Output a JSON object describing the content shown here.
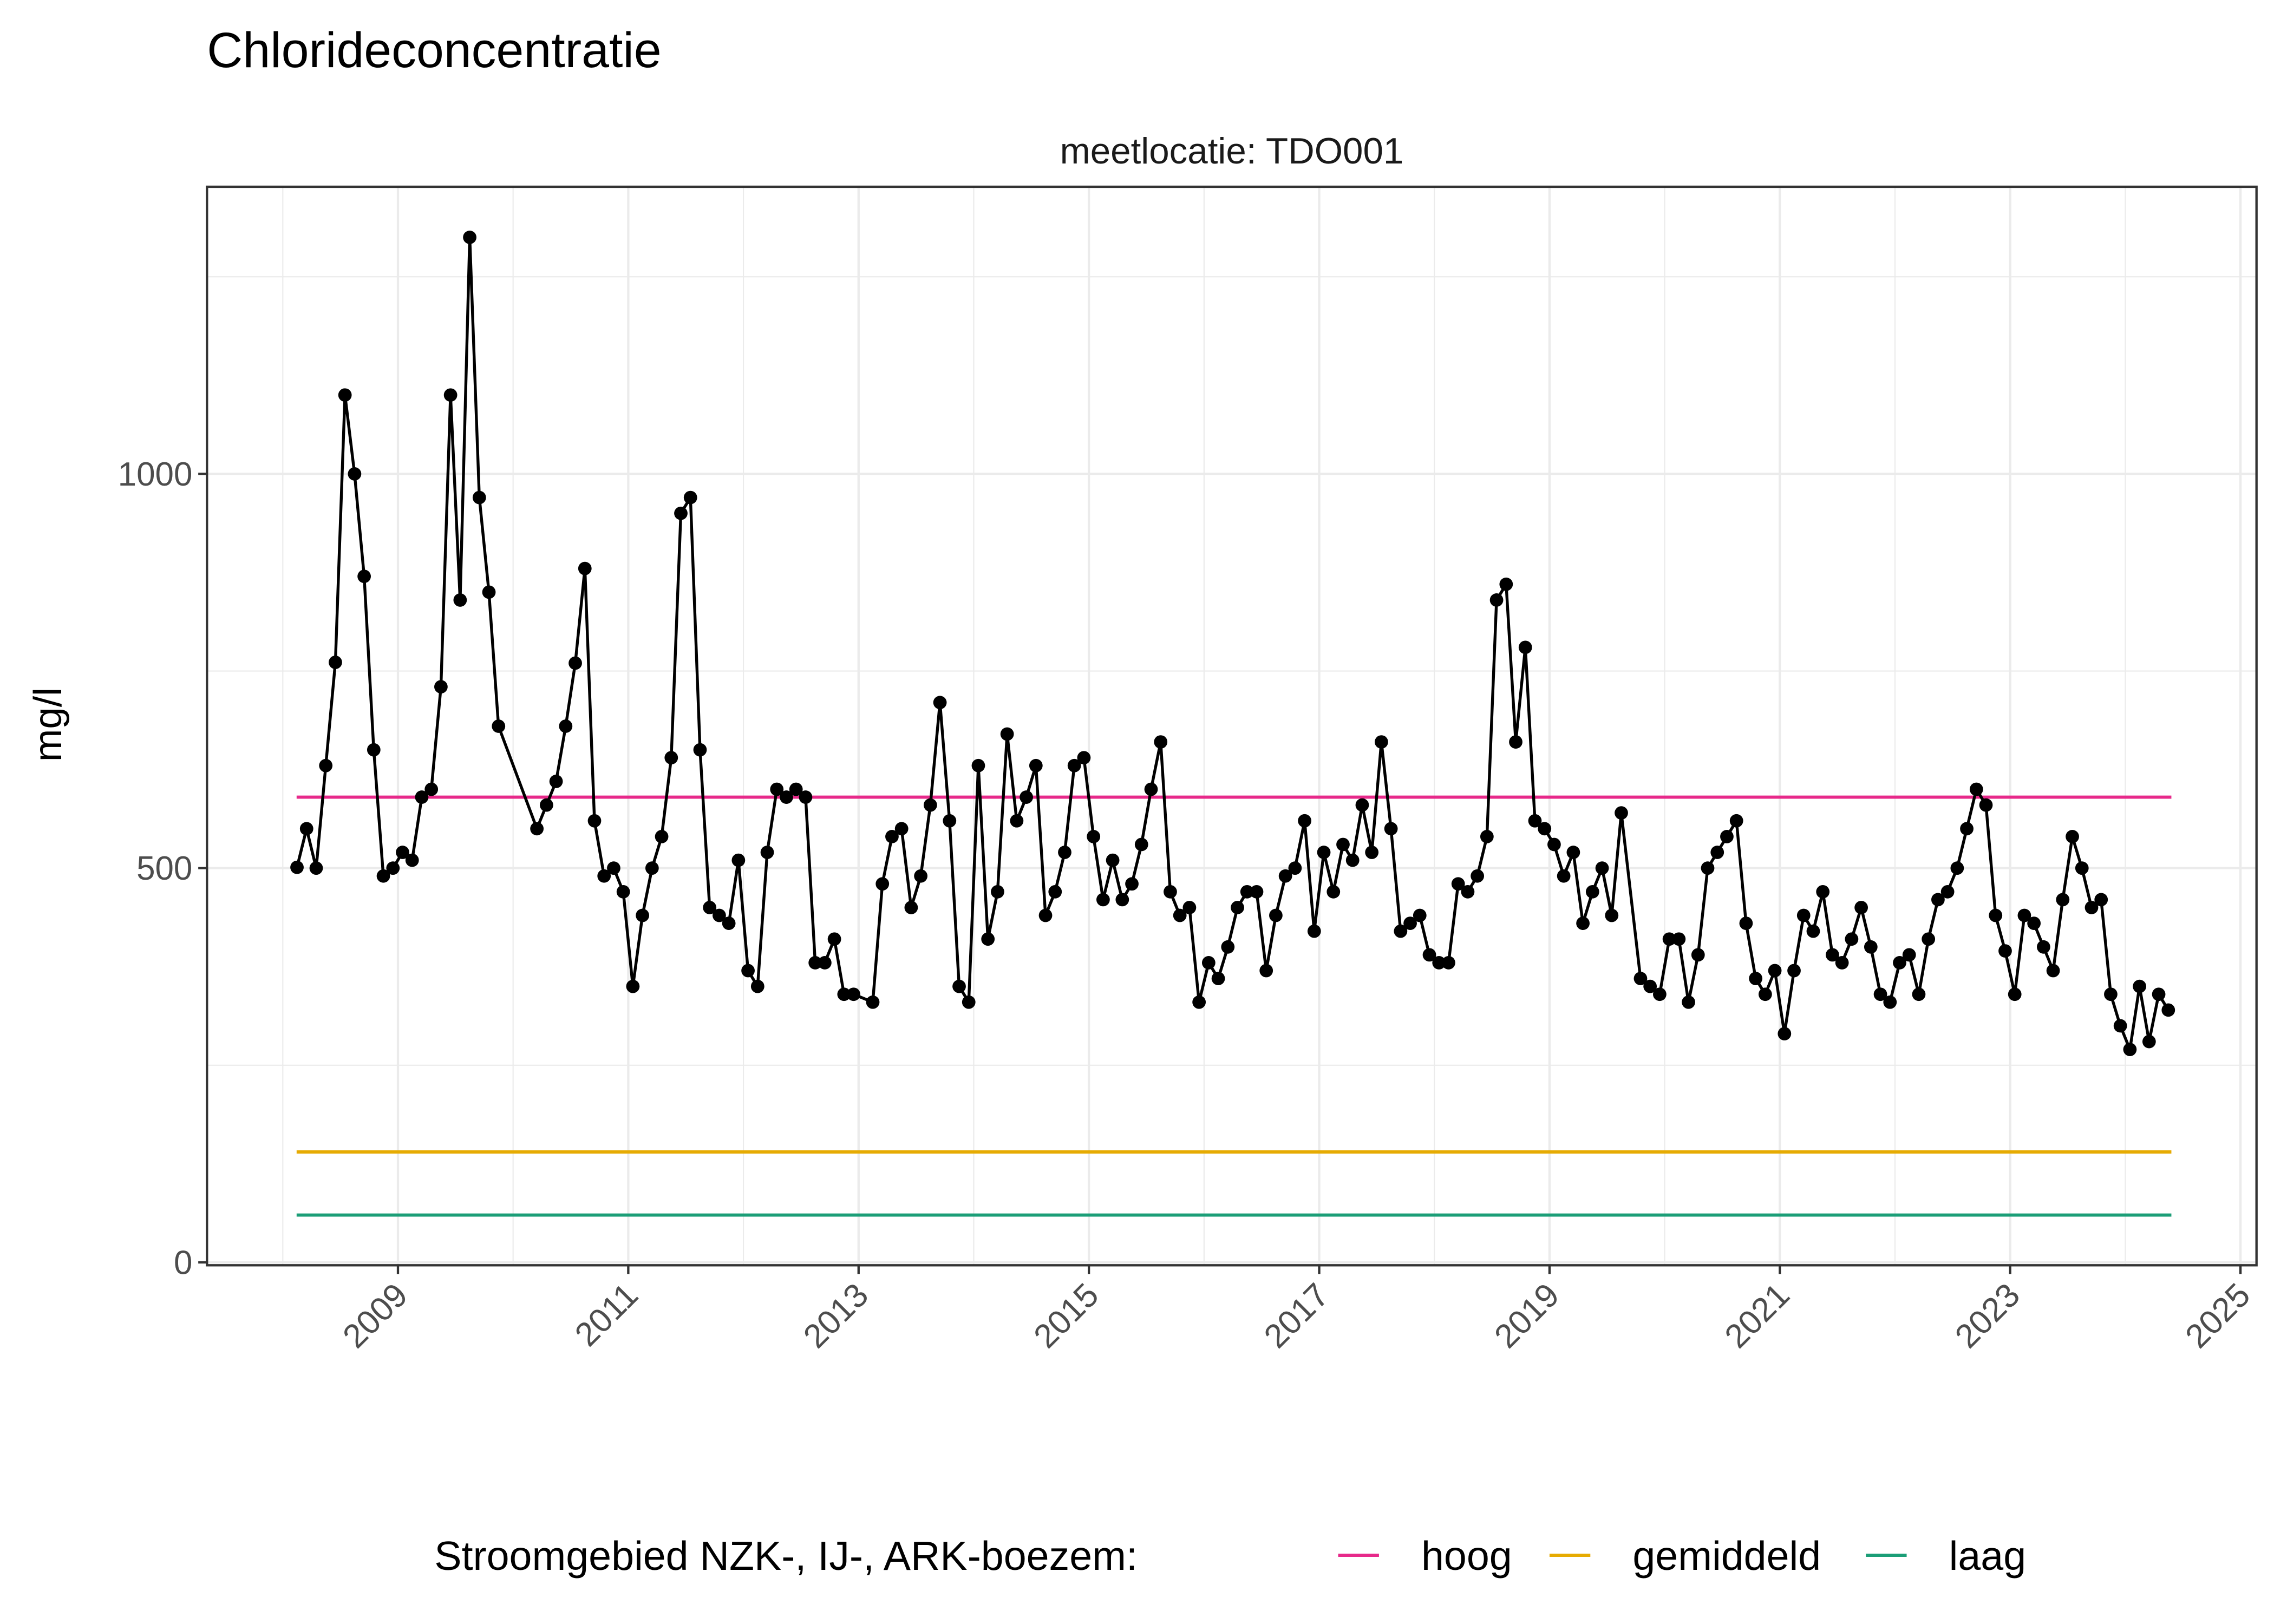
{
  "chart_data": {
    "type": "line",
    "title": "Chlorideconcentratie",
    "facet_label": "meetlocatie: TDO001",
    "xlabel": "",
    "ylabel": "mg/l",
    "x_ticks": [
      "2009",
      "2011",
      "2013",
      "2015",
      "2017",
      "2019",
      "2021",
      "2023",
      "2025"
    ],
    "y_ticks": [
      "0",
      "500",
      "1000"
    ],
    "xlim": [
      "2007-10",
      "2025-05"
    ],
    "ylim": [
      0,
      1365
    ],
    "grid": true,
    "legend": {
      "title": "Stroomgebied NZK-, IJ-, ARK-boezem:",
      "position": "bottom",
      "entries": [
        {
          "label": "hoog",
          "color": "#E7298A"
        },
        {
          "label": "gemiddeld",
          "color": "#E6AB02"
        },
        {
          "label": "laag",
          "color": "#1B9E77"
        }
      ]
    },
    "reference_lines": [
      {
        "name": "hoog",
        "value": 590,
        "color": "#E7298A"
      },
      {
        "name": "gemiddeld",
        "value": 140,
        "color": "#E6AB02"
      },
      {
        "name": "laag",
        "value": 60,
        "color": "#1B9E77"
      }
    ],
    "series": [
      {
        "color": "#000000",
        "points": [
          [
            "2008-02",
            501
          ],
          [
            "2008-03",
            550
          ],
          [
            "2008-04",
            500
          ],
          [
            "2008-05",
            630
          ],
          [
            "2008-06",
            761
          ],
          [
            "2008-07",
            1100
          ],
          [
            "2008-08",
            1000
          ],
          [
            "2008-09",
            870
          ],
          [
            "2008-10",
            650
          ],
          [
            "2008-11",
            490
          ],
          [
            "2008-12",
            500
          ],
          [
            "2009-01",
            520
          ],
          [
            "2009-02",
            510
          ],
          [
            "2009-03",
            590
          ],
          [
            "2009-04",
            600
          ],
          [
            "2009-05",
            730
          ],
          [
            "2009-06",
            1100
          ],
          [
            "2009-07",
            840
          ],
          [
            "2009-08",
            1300
          ],
          [
            "2009-09",
            970
          ],
          [
            "2009-10",
            850
          ],
          [
            "2009-11",
            680
          ],
          [
            "2010-03",
            550
          ],
          [
            "2010-04",
            580
          ],
          [
            "2010-05",
            610
          ],
          [
            "2010-06",
            680
          ],
          [
            "2010-07",
            760
          ],
          [
            "2010-08",
            880
          ],
          [
            "2010-09",
            560
          ],
          [
            "2010-10",
            490
          ],
          [
            "2010-11",
            500
          ],
          [
            "2010-12",
            470
          ],
          [
            "2011-01",
            350
          ],
          [
            "2011-02",
            440
          ],
          [
            "2011-03",
            500
          ],
          [
            "2011-04",
            540
          ],
          [
            "2011-05",
            640
          ],
          [
            "2011-06",
            950
          ],
          [
            "2011-07",
            970
          ],
          [
            "2011-08",
            650
          ],
          [
            "2011-09",
            450
          ],
          [
            "2011-10",
            440
          ],
          [
            "2011-11",
            430
          ],
          [
            "2011-12",
            510
          ],
          [
            "2012-01",
            370
          ],
          [
            "2012-02",
            350
          ],
          [
            "2012-03",
            520
          ],
          [
            "2012-04",
            600
          ],
          [
            "2012-05",
            590
          ],
          [
            "2012-06",
            600
          ],
          [
            "2012-07",
            590
          ],
          [
            "2012-08",
            380
          ],
          [
            "2012-09",
            380
          ],
          [
            "2012-10",
            410
          ],
          [
            "2012-11",
            340
          ],
          [
            "2012-12",
            340
          ],
          [
            "2013-02",
            330
          ],
          [
            "2013-03",
            480
          ],
          [
            "2013-04",
            540
          ],
          [
            "2013-05",
            550
          ],
          [
            "2013-06",
            450
          ],
          [
            "2013-07",
            490
          ],
          [
            "2013-08",
            580
          ],
          [
            "2013-09",
            710
          ],
          [
            "2013-10",
            560
          ],
          [
            "2013-11",
            350
          ],
          [
            "2013-12",
            330
          ],
          [
            "2014-01",
            630
          ],
          [
            "2014-02",
            410
          ],
          [
            "2014-03",
            470
          ],
          [
            "2014-04",
            670
          ],
          [
            "2014-05",
            560
          ],
          [
            "2014-06",
            590
          ],
          [
            "2014-07",
            630
          ],
          [
            "2014-08",
            440
          ],
          [
            "2014-09",
            470
          ],
          [
            "2014-10",
            520
          ],
          [
            "2014-11",
            630
          ],
          [
            "2014-12",
            640
          ],
          [
            "2015-01",
            540
          ],
          [
            "2015-02",
            460
          ],
          [
            "2015-03",
            510
          ],
          [
            "2015-04",
            460
          ],
          [
            "2015-05",
            480
          ],
          [
            "2015-06",
            530
          ],
          [
            "2015-07",
            600
          ],
          [
            "2015-08",
            660
          ],
          [
            "2015-09",
            470
          ],
          [
            "2015-10",
            440
          ],
          [
            "2015-11",
            450
          ],
          [
            "2015-12",
            330
          ],
          [
            "2016-01",
            380
          ],
          [
            "2016-02",
            360
          ],
          [
            "2016-03",
            400
          ],
          [
            "2016-04",
            450
          ],
          [
            "2016-05",
            470
          ],
          [
            "2016-06",
            470
          ],
          [
            "2016-07",
            370
          ],
          [
            "2016-08",
            440
          ],
          [
            "2016-09",
            490
          ],
          [
            "2016-10",
            500
          ],
          [
            "2016-11",
            560
          ],
          [
            "2016-12",
            420
          ],
          [
            "2017-01",
            520
          ],
          [
            "2017-02",
            470
          ],
          [
            "2017-03",
            530
          ],
          [
            "2017-04",
            510
          ],
          [
            "2017-05",
            580
          ],
          [
            "2017-06",
            520
          ],
          [
            "2017-07",
            660
          ],
          [
            "2017-08",
            550
          ],
          [
            "2017-09",
            420
          ],
          [
            "2017-10",
            430
          ],
          [
            "2017-11",
            440
          ],
          [
            "2017-12",
            390
          ],
          [
            "2018-01",
            380
          ],
          [
            "2018-02",
            380
          ],
          [
            "2018-03",
            480
          ],
          [
            "2018-04",
            470
          ],
          [
            "2018-05",
            490
          ],
          [
            "2018-06",
            540
          ],
          [
            "2018-07",
            840
          ],
          [
            "2018-08",
            860
          ],
          [
            "2018-09",
            660
          ],
          [
            "2018-10",
            780
          ],
          [
            "2018-11",
            560
          ],
          [
            "2018-12",
            550
          ],
          [
            "2019-01",
            530
          ],
          [
            "2019-02",
            490
          ],
          [
            "2019-03",
            520
          ],
          [
            "2019-04",
            430
          ],
          [
            "2019-05",
            470
          ],
          [
            "2019-06",
            500
          ],
          [
            "2019-07",
            440
          ],
          [
            "2019-08",
            570
          ],
          [
            "2019-10",
            360
          ],
          [
            "2019-11",
            350
          ],
          [
            "2019-12",
            340
          ],
          [
            "2020-01",
            410
          ],
          [
            "2020-02",
            410
          ],
          [
            "2020-03",
            330
          ],
          [
            "2020-04",
            390
          ],
          [
            "2020-05",
            500
          ],
          [
            "2020-06",
            520
          ],
          [
            "2020-07",
            540
          ],
          [
            "2020-08",
            560
          ],
          [
            "2020-09",
            430
          ],
          [
            "2020-10",
            360
          ],
          [
            "2020-11",
            340
          ],
          [
            "2020-12",
            370
          ],
          [
            "2021-01",
            290
          ],
          [
            "2021-02",
            370
          ],
          [
            "2021-03",
            440
          ],
          [
            "2021-04",
            420
          ],
          [
            "2021-05",
            470
          ],
          [
            "2021-06",
            390
          ],
          [
            "2021-07",
            380
          ],
          [
            "2021-08",
            410
          ],
          [
            "2021-09",
            450
          ],
          [
            "2021-10",
            400
          ],
          [
            "2021-11",
            340
          ],
          [
            "2021-12",
            330
          ],
          [
            "2022-01",
            380
          ],
          [
            "2022-02",
            390
          ],
          [
            "2022-03",
            340
          ],
          [
            "2022-04",
            410
          ],
          [
            "2022-05",
            460
          ],
          [
            "2022-06",
            470
          ],
          [
            "2022-07",
            500
          ],
          [
            "2022-08",
            550
          ],
          [
            "2022-09",
            600
          ],
          [
            "2022-10",
            580
          ],
          [
            "2022-11",
            440
          ],
          [
            "2022-12",
            395
          ],
          [
            "2023-01",
            340
          ],
          [
            "2023-02",
            440
          ],
          [
            "2023-03",
            430
          ],
          [
            "2023-04",
            400
          ],
          [
            "2023-05",
            370
          ],
          [
            "2023-06",
            460
          ],
          [
            "2023-07",
            540
          ],
          [
            "2023-08",
            500
          ],
          [
            "2023-09",
            450
          ],
          [
            "2023-10",
            460
          ],
          [
            "2023-11",
            340
          ],
          [
            "2023-12",
            300
          ],
          [
            "2024-01",
            270
          ],
          [
            "2024-02",
            350
          ],
          [
            "2024-03",
            280
          ],
          [
            "2024-04",
            340
          ],
          [
            "2024-05",
            320
          ]
        ]
      }
    ]
  }
}
